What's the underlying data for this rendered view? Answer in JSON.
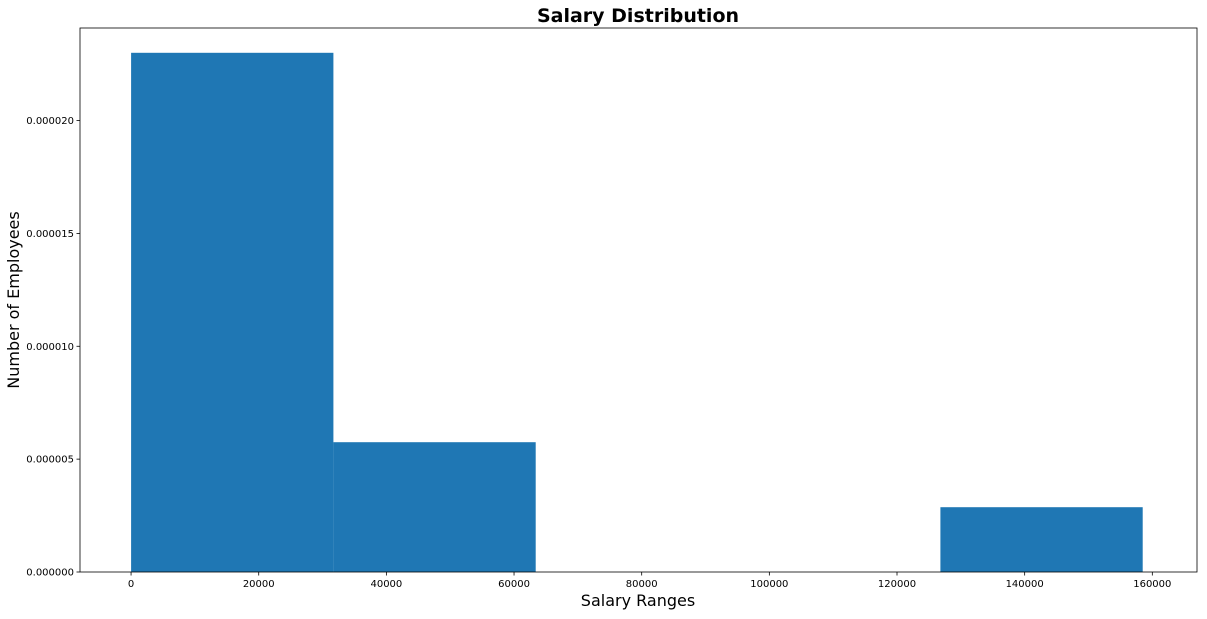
{
  "chart_data": {
    "type": "bar",
    "title": "Salary Distribution",
    "xlabel": "Salary Ranges",
    "ylabel": "Number of Employees",
    "bins": [
      {
        "x0": 0,
        "x1": 31700,
        "value": 2.3e-05
      },
      {
        "x0": 31700,
        "x1": 63400,
        "value": 5.75e-06
      },
      {
        "x0": 63400,
        "x1": 95100,
        "value": 0
      },
      {
        "x0": 95100,
        "x1": 126800,
        "value": 0
      },
      {
        "x0": 126800,
        "x1": 158500,
        "value": 2.87e-06
      }
    ],
    "xlim": [
      -8000,
      167000
    ],
    "ylim": [
      0,
      2.41e-05
    ],
    "xticks": [
      0,
      20000,
      40000,
      60000,
      80000,
      100000,
      120000,
      140000,
      160000
    ],
    "xtick_labels": [
      "0",
      "20000",
      "40000",
      "60000",
      "80000",
      "100000",
      "120000",
      "140000",
      "160000"
    ],
    "yticks": [
      0,
      5e-06,
      1e-05,
      1.5e-05,
      2e-05
    ],
    "ytick_labels": [
      "0.000000",
      "0.000005",
      "0.000010",
      "0.000015",
      "0.000020"
    ],
    "bar_color": "#1f77b4",
    "grid": false
  }
}
